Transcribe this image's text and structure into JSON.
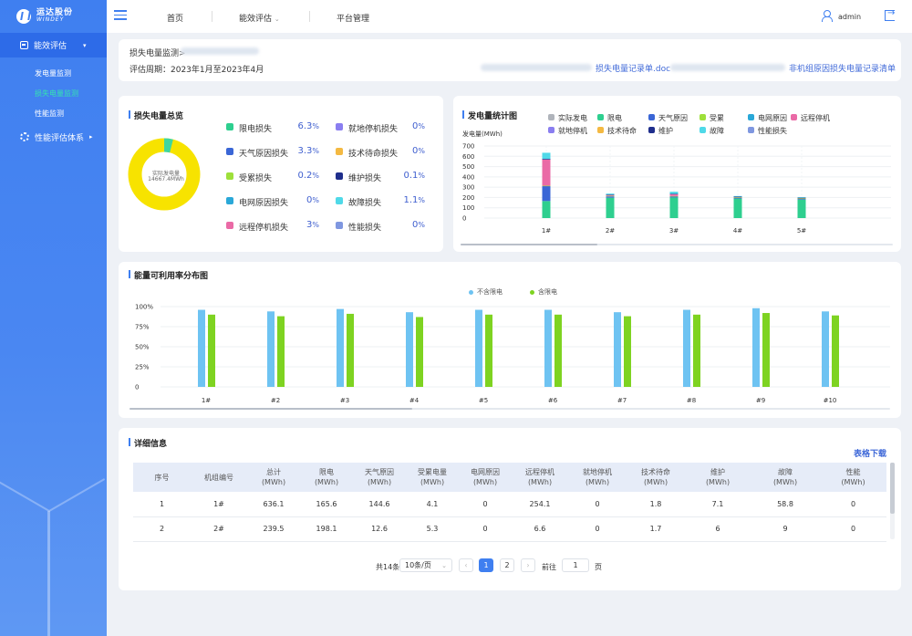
{
  "sidebar": {
    "logo_cn": "运达股份",
    "logo_en": "WINDEY",
    "menu1": "能效评估",
    "sub_items": [
      "发电量监测",
      "损失电量监测",
      "性能监测"
    ],
    "menu2": "性能评估体系"
  },
  "topbar": {
    "nav": [
      "首页",
      "能效评估",
      "平台管理"
    ],
    "user": "admin"
  },
  "header_card": {
    "breadcrumb": "损失电量监测>",
    "period": "评估周期：2023年1月至2023年4月",
    "link1": "损失电量记录单.doc",
    "link2": "非机组原因损失电量记录清单"
  },
  "loss_overview": {
    "title": "损失电量总览",
    "donut_label": "实际发电量",
    "donut_value": "14667.4MWh",
    "donut_color": "#f7e300",
    "items": [
      {
        "label": "限电损失",
        "value": "6.3",
        "color": "#2ecf8f"
      },
      {
        "label": "就地停机损失",
        "value": "0",
        "color": "#8a7ef0"
      },
      {
        "label": "天气原因损失",
        "value": "3.3",
        "color": "#3a66d6"
      },
      {
        "label": "技术待命损失",
        "value": "0",
        "color": "#f4b942"
      },
      {
        "label": "受累损失",
        "value": "0.2",
        "color": "#9ee03a"
      },
      {
        "label": "维护损失",
        "value": "0.1",
        "color": "#1f2e8c"
      },
      {
        "label": "电网原因损失",
        "value": "0",
        "color": "#2aa8d8"
      },
      {
        "label": "故障损失",
        "value": "1.1",
        "color": "#4fd9e8"
      },
      {
        "label": "远程停机损失",
        "value": "3",
        "color": "#ea6aa6"
      },
      {
        "label": "性能损失",
        "value": "0",
        "color": "#7f97e0"
      }
    ]
  },
  "gen_chart": {
    "title": "发电量统计图",
    "ylabel": "发电量(MWh)",
    "legend": [
      {
        "name": "实际发电",
        "color": "#b0b4bb"
      },
      {
        "name": "限电",
        "color": "#2ecf8f"
      },
      {
        "name": "天气原因",
        "color": "#3a66d6"
      },
      {
        "name": "受累",
        "color": "#9ee03a"
      },
      {
        "name": "电网原因",
        "color": "#2aa8d8"
      },
      {
        "name": "远程停机",
        "color": "#ea6aa6"
      },
      {
        "name": "就地停机",
        "color": "#8a7ef0"
      },
      {
        "name": "技术待命",
        "color": "#f4b942"
      },
      {
        "name": "维护",
        "color": "#1f2e8c"
      },
      {
        "name": "故障",
        "color": "#4fd9e8"
      },
      {
        "name": "性能损失",
        "color": "#7f97e0"
      }
    ]
  },
  "util_chart": {
    "title": "能量可利用率分布图",
    "legend": [
      {
        "name": "不含限电",
        "color": "#6ec3f2"
      },
      {
        "name": "含限电",
        "color": "#7ed321"
      }
    ]
  },
  "chart_data": [
    {
      "type": "bar",
      "stacked": true,
      "categories": [
        "1#",
        "2#",
        "3#",
        "4#",
        "5#"
      ],
      "ylim": [
        0,
        700
      ],
      "yticks": [
        "0",
        "100",
        "200",
        "300",
        "400",
        "500",
        "600",
        "700"
      ],
      "series": [
        {
          "name": "限电",
          "color": "#2ecf8f",
          "values": [
            165.6,
            198.1,
            200,
            190,
            180
          ]
        },
        {
          "name": "天气原因",
          "color": "#3a66d6",
          "values": [
            144.6,
            12.6,
            10,
            8,
            8
          ]
        },
        {
          "name": "受累",
          "color": "#9ee03a",
          "values": [
            4.1,
            5.3,
            4,
            3,
            3
          ]
        },
        {
          "name": "远程停机",
          "color": "#ea6aa6",
          "values": [
            254.1,
            6.6,
            20,
            5,
            5
          ]
        },
        {
          "name": "维护",
          "color": "#1f2e8c",
          "values": [
            7.1,
            6,
            2,
            2,
            2
          ]
        },
        {
          "name": "故障",
          "color": "#4fd9e8",
          "values": [
            58.8,
            9,
            20,
            6,
            6
          ]
        }
      ]
    },
    {
      "type": "bar",
      "categories": [
        "1#",
        "#2",
        "#3",
        "#4",
        "#5",
        "#6",
        "#7",
        "#8",
        "#9",
        "#10"
      ],
      "ylim": [
        0,
        100
      ],
      "yticks": [
        "0",
        "25%",
        "50%",
        "75%",
        "100%"
      ],
      "series": [
        {
          "name": "不含限电",
          "color": "#6ec3f2",
          "values": [
            96,
            94,
            97,
            93,
            96,
            96,
            93,
            96,
            98,
            94
          ]
        },
        {
          "name": "含限电",
          "color": "#7ed321",
          "values": [
            90,
            88,
            91,
            87,
            90,
            90,
            88,
            90,
            92,
            89
          ]
        }
      ]
    }
  ],
  "detail": {
    "title": "详细信息",
    "download": "表格下载",
    "headers": [
      [
        "序号",
        ""
      ],
      [
        "机组编号",
        ""
      ],
      [
        "总计",
        "(MWh)"
      ],
      [
        "限电",
        "(MWh)"
      ],
      [
        "天气原因",
        "(MWh)"
      ],
      [
        "受累电量",
        "(MWh)"
      ],
      [
        "电网原因",
        "(MWh)"
      ],
      [
        "远程停机",
        "(MWh)"
      ],
      [
        "就地停机",
        "(MWh)"
      ],
      [
        "技术待命",
        "(MWh)"
      ],
      [
        "维护",
        "(MWh)"
      ],
      [
        "故障",
        "(MWh)"
      ],
      [
        "性能",
        "(MWh)"
      ]
    ],
    "rows": [
      [
        "1",
        "1#",
        "636.1",
        "165.6",
        "144.6",
        "4.1",
        "0",
        "254.1",
        "0",
        "1.8",
        "7.1",
        "58.8",
        "0"
      ],
      [
        "2",
        "2#",
        "239.5",
        "198.1",
        "12.6",
        "5.3",
        "0",
        "6.6",
        "0",
        "1.7",
        "6",
        "9",
        "0"
      ]
    ]
  },
  "pagination": {
    "total": "共14条",
    "page_size": "10条/页",
    "pages": [
      "1",
      "2"
    ],
    "goto": "前往",
    "goto_value": "1",
    "page_unit": "页"
  }
}
